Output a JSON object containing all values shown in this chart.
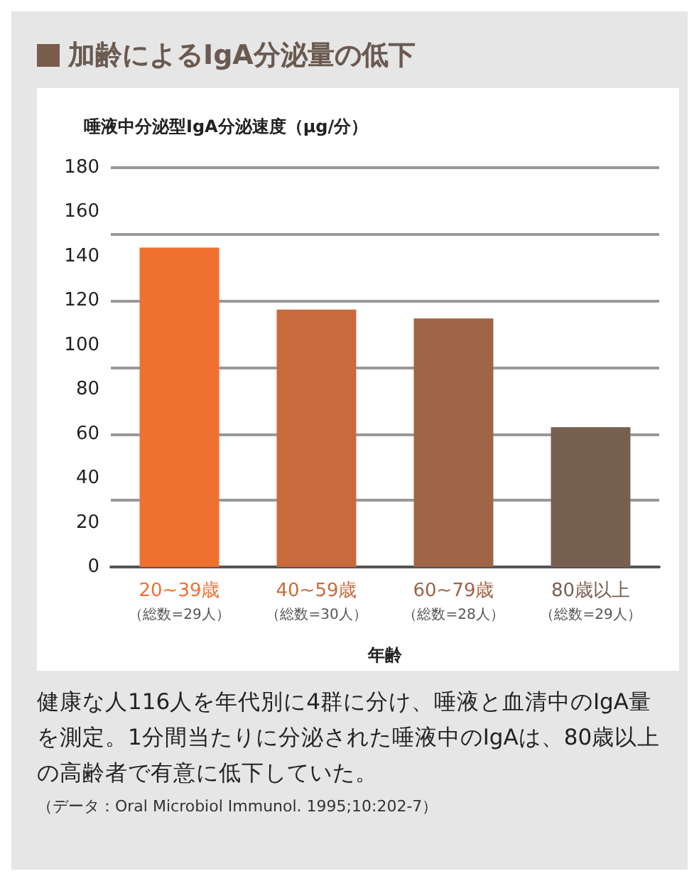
{
  "chart_data": {
    "type": "bar",
    "title": "加齢によるIgA分泌量の低下",
    "ylabel": "唾液中分泌型IgA分泌速度（μg/分）",
    "xlabel": "年齢",
    "categories": [
      "20~39歳（総数=29人）",
      "40~59歳（総数=30人）",
      "60~79歳（総数=28人）",
      "80歳以上（総数=29人）"
    ],
    "values": [
      144,
      116,
      112,
      63
    ],
    "colors": [
      "#f07030",
      "#c86a3c",
      "#a06446",
      "#786050"
    ],
    "ylim": [
      0,
      180
    ],
    "yticks": [
      0,
      20,
      40,
      60,
      80,
      100,
      120,
      140,
      160,
      180
    ],
    "grid": "y",
    "annotations": [
      "健康な人116人を年代別に4群に分け、唾液と血清中のIgA量を測定。1分間当たりに分泌された唾液中のIgAは、80歳以上の高齢者で有意に低下していた。",
      "（データ：Oral Microbiol Immunol. 1995;10:202-7）"
    ]
  }
}
